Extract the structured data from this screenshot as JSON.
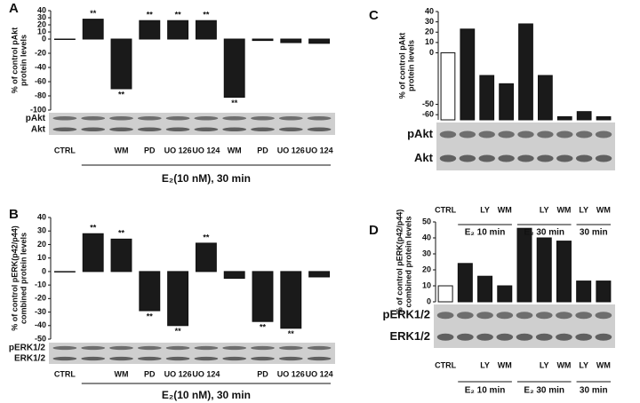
{
  "chart_data": [
    {
      "type": "bar",
      "panel": "A",
      "ylabel": [
        "% of control pAkt",
        "protein levels"
      ],
      "categories": [
        "CTRL",
        null,
        "WM",
        "PD",
        "UO 126",
        "UO 124",
        "WM",
        "PD",
        "UO 126",
        "UO 124"
      ],
      "values": [
        0,
        28,
        -70,
        26,
        26,
        26,
        -82,
        -2,
        -5,
        -6
      ],
      "colors": [
        "#ffffff",
        "#1a1a1a",
        "#1a1a1a",
        "#1a1a1a",
        "#1a1a1a",
        "#1a1a1a",
        "#1a1a1a",
        "#1a1a1a",
        "#1a1a1a",
        "#1a1a1a"
      ],
      "significance": [
        null,
        "**",
        "**",
        "**",
        "**",
        "**",
        "**",
        null,
        null,
        null
      ],
      "ylim": [
        -100,
        40
      ],
      "yticks": [
        40,
        30,
        20,
        10,
        0,
        -20,
        -40,
        -60,
        -80,
        -100
      ],
      "blots": [
        "pAkt",
        "Akt"
      ],
      "groups": [
        "E₂(10 nM), 30 min"
      ]
    },
    {
      "type": "bar",
      "panel": "B",
      "ylabel": [
        "% of control pERK(p42/p44)",
        "combined protein levels"
      ],
      "categories": [
        "CTRL",
        null,
        "WM",
        "PD",
        "UO 126",
        "UO 124",
        null,
        "PD",
        "UO 126",
        "UO 124"
      ],
      "values": [
        0,
        28,
        24,
        -29,
        -40,
        21,
        -5,
        -37,
        -42,
        -4
      ],
      "colors": [
        "#ffffff",
        "#1a1a1a",
        "#1a1a1a",
        "#1a1a1a",
        "#1a1a1a",
        "#1a1a1a",
        "#1a1a1a",
        "#1a1a1a",
        "#1a1a1a",
        "#1a1a1a"
      ],
      "significance": [
        null,
        "**",
        "**",
        "**",
        "**",
        "**",
        null,
        "**",
        "**",
        null
      ],
      "ylim": [
        -50,
        40
      ],
      "yticks": [
        40,
        30,
        20,
        10,
        0,
        -10,
        -20,
        -30,
        -40,
        -50
      ],
      "blots": [
        "pERK1/2",
        "ERK1/2"
      ],
      "groups": [
        "E₂(10 nM), 30 min"
      ]
    },
    {
      "type": "bar",
      "panel": "C",
      "ylabel": [
        "% of control pAkt",
        "protein levels"
      ],
      "values": [
        0,
        23,
        -22,
        -30,
        28,
        -22,
        -62,
        -57,
        -62
      ],
      "colors": [
        "#ffffff",
        "#1a1a1a",
        "#1a1a1a",
        "#1a1a1a",
        "#1a1a1a",
        "#1a1a1a",
        "#1a1a1a",
        "#1a1a1a",
        "#1a1a1a"
      ],
      "ylim": [
        -65,
        40
      ],
      "yticks": [
        40,
        30,
        20,
        10,
        0,
        -50,
        -60
      ],
      "blots": [
        "pAkt",
        "Akt"
      ]
    },
    {
      "type": "bar",
      "panel": "D",
      "ylabel": [
        "% of control pERK(p42/p44)",
        "combined protein levels"
      ],
      "categories": [
        "CTRL",
        null,
        "LY",
        "WM",
        null,
        "LY",
        "WM",
        "LY",
        "WM"
      ],
      "values": [
        10,
        24,
        16,
        10,
        46,
        40,
        38,
        13,
        13
      ],
      "colors": [
        "#ffffff",
        "#1a1a1a",
        "#1a1a1a",
        "#1a1a1a",
        "#1a1a1a",
        "#1a1a1a",
        "#1a1a1a",
        "#1a1a1a",
        "#1a1a1a"
      ],
      "ylim": [
        0,
        50
      ],
      "yticks": [
        50,
        40,
        30,
        20,
        10,
        0
      ],
      "blots": [
        "pERK1/2",
        "ERK1/2"
      ],
      "groups": [
        "E₂ 10 min",
        "E₂ 30 min",
        "30 min"
      ]
    }
  ]
}
